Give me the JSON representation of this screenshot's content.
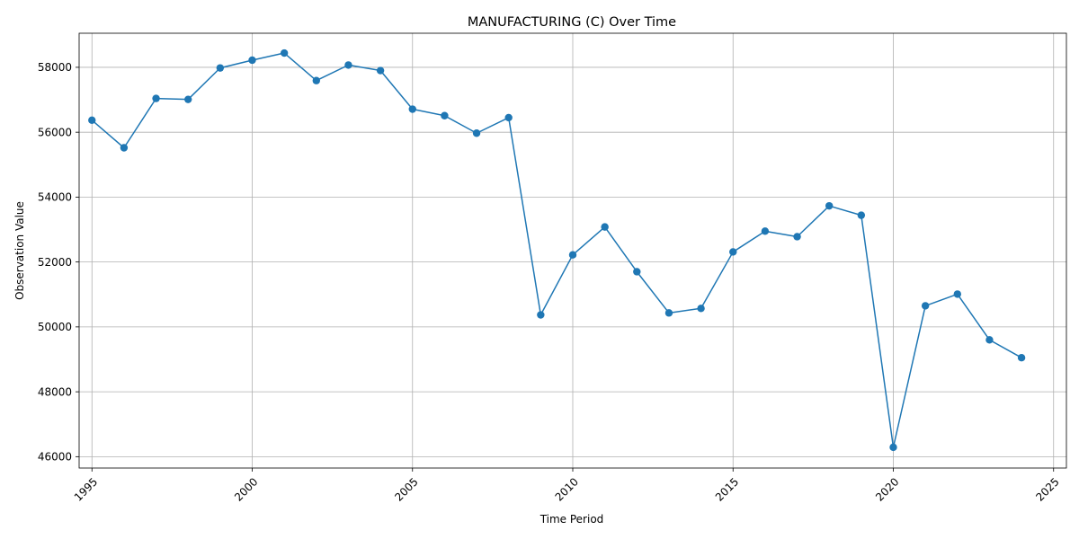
{
  "chart_data": {
    "type": "line",
    "title": "MANUFACTURING (C) Over Time",
    "xlabel": "Time Period",
    "ylabel": "Observation Value",
    "xlim": [
      1994.6,
      2025.4
    ],
    "ylim": [
      45650,
      59050
    ],
    "x_ticks": [
      1995,
      2000,
      2005,
      2010,
      2015,
      2020,
      2025
    ],
    "x_tick_labels": [
      "1995",
      "2000",
      "2005",
      "2010",
      "2015",
      "2020",
      "2025"
    ],
    "y_ticks": [
      46000,
      48000,
      50000,
      52000,
      54000,
      56000,
      58000
    ],
    "y_tick_labels": [
      "46000",
      "48000",
      "50000",
      "52000",
      "54000",
      "56000",
      "58000"
    ],
    "grid": true,
    "color": "#1f77b4",
    "series": [
      {
        "x": [
          1995,
          1996,
          1997,
          1998,
          1999,
          2000,
          2001,
          2002,
          2003,
          2004,
          2005,
          2006,
          2007,
          2008,
          2009,
          2010,
          2011,
          2012,
          2013,
          2014,
          2015,
          2016,
          2017,
          2018,
          2019,
          2020,
          2021,
          2022,
          2023,
          2024
        ],
        "values": [
          56370,
          55520,
          57040,
          57010,
          57980,
          58220,
          58440,
          57590,
          58070,
          57900,
          56710,
          56510,
          55970,
          56450,
          50370,
          52220,
          53080,
          51700,
          50430,
          50570,
          52310,
          52950,
          52780,
          53730,
          53440,
          46290,
          50650,
          51010,
          49600,
          49050
        ]
      }
    ]
  }
}
